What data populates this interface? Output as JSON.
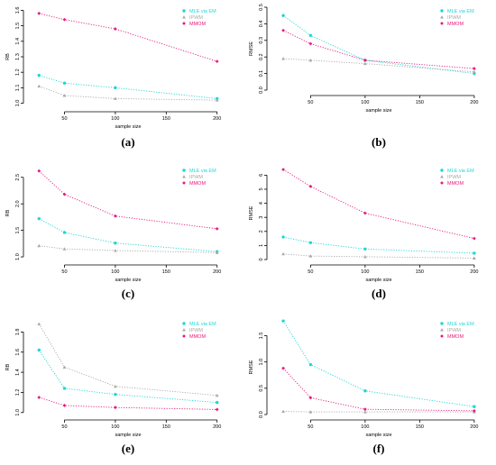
{
  "colors": {
    "mle": "#1fd6d6",
    "ipwm": "#a9a9a9",
    "mmom": "#e8197c"
  },
  "chart_data": [
    {
      "type": "line",
      "caption": "(a)",
      "title": "",
      "xlabel": "sample size",
      "ylabel": "RB",
      "categories": [
        25,
        50,
        100,
        200
      ],
      "xticks": [
        50,
        100,
        150,
        200
      ],
      "ylim": [
        0.98,
        1.62
      ],
      "yticks": [
        "1.0",
        "1.1",
        "1.2",
        "1.3",
        "1.4",
        "1.5",
        "1.6"
      ],
      "legend": "top-right",
      "series": [
        {
          "name": "MLE via EM",
          "marker": "circle",
          "values": [
            1.18,
            1.13,
            1.1,
            1.03
          ]
        },
        {
          "name": "IPWM",
          "marker": "triangle",
          "values": [
            1.11,
            1.05,
            1.03,
            1.02
          ]
        },
        {
          "name": "MMOM",
          "marker": "diamond",
          "values": [
            1.58,
            1.54,
            1.48,
            1.27
          ]
        }
      ]
    },
    {
      "type": "line",
      "caption": "(b)",
      "title": "",
      "xlabel": "sample size",
      "ylabel": "RMSE",
      "categories": [
        25,
        50,
        100,
        200
      ],
      "xticks": [
        50,
        100,
        150,
        200
      ],
      "ylim": [
        0.0,
        0.5
      ],
      "yticks": [
        "0.0",
        "0.1",
        "0.2",
        "0.3",
        "0.4",
        "0.5"
      ],
      "legend": "top-right",
      "series": [
        {
          "name": "MLE via EM",
          "marker": "circle",
          "values": [
            0.45,
            0.33,
            0.18,
            0.1
          ]
        },
        {
          "name": "IPWM",
          "marker": "triangle",
          "values": [
            0.19,
            0.18,
            0.16,
            0.11
          ]
        },
        {
          "name": "MMOM",
          "marker": "diamond",
          "values": [
            0.36,
            0.28,
            0.18,
            0.13
          ]
        }
      ]
    },
    {
      "type": "line",
      "caption": "(c)",
      "title": "",
      "xlabel": "sample size",
      "ylabel": "RB",
      "categories": [
        25,
        50,
        100,
        200
      ],
      "xticks": [
        50,
        100,
        150,
        200
      ],
      "ylim": [
        0.95,
        2.7
      ],
      "yticks": [
        "1.0",
        "1.5",
        "2.0",
        "2.5"
      ],
      "legend": "top-right",
      "series": [
        {
          "name": "MLE via EM",
          "marker": "circle",
          "values": [
            1.72,
            1.46,
            1.26,
            1.1
          ]
        },
        {
          "name": "IPWM",
          "marker": "triangle",
          "values": [
            1.21,
            1.15,
            1.12,
            1.08
          ]
        },
        {
          "name": "MMOM",
          "marker": "diamond",
          "values": [
            2.62,
            2.18,
            1.77,
            1.53
          ]
        }
      ]
    },
    {
      "type": "line",
      "caption": "(d)",
      "title": "",
      "xlabel": "sample size",
      "ylabel": "RMSE",
      "categories": [
        25,
        50,
        100,
        200
      ],
      "xticks": [
        50,
        100,
        150,
        200
      ],
      "ylim": [
        0,
        6.6
      ],
      "yticks": [
        "0",
        "1",
        "2",
        "3",
        "4",
        "5",
        "6"
      ],
      "legend": "top-right",
      "series": [
        {
          "name": "MLE via EM",
          "marker": "circle",
          "values": [
            1.6,
            1.2,
            0.75,
            0.45
          ]
        },
        {
          "name": "IPWM",
          "marker": "triangle",
          "values": [
            0.4,
            0.25,
            0.2,
            0.1
          ]
        },
        {
          "name": "MMOM",
          "marker": "diamond",
          "values": [
            6.4,
            5.2,
            3.3,
            1.5
          ]
        }
      ]
    },
    {
      "type": "line",
      "caption": "(e)",
      "title": "",
      "xlabel": "sample size",
      "ylabel": "RB",
      "categories": [
        25,
        50,
        100,
        200
      ],
      "xticks": [
        50,
        100,
        150,
        200
      ],
      "ylim": [
        0.98,
        1.92
      ],
      "yticks": [
        "1.0",
        "1.2",
        "1.4",
        "1.6",
        "1.8"
      ],
      "legend": "top-right",
      "series": [
        {
          "name": "MLE via EM",
          "marker": "circle",
          "values": [
            1.62,
            1.24,
            1.18,
            1.1
          ]
        },
        {
          "name": "IPWM",
          "marker": "triangle",
          "values": [
            1.88,
            1.45,
            1.26,
            1.17
          ]
        },
        {
          "name": "MMOM",
          "marker": "diamond",
          "values": [
            1.15,
            1.07,
            1.05,
            1.03
          ]
        }
      ]
    },
    {
      "type": "line",
      "caption": "(f)",
      "title": "",
      "xlabel": "sample size",
      "ylabel": "RMSE",
      "categories": [
        25,
        50,
        100,
        200
      ],
      "xticks": [
        50,
        100,
        150,
        200
      ],
      "ylim": [
        0.0,
        1.8
      ],
      "yticks": [
        "0.0",
        "0.5",
        "1.0",
        "1.5"
      ],
      "legend": "top-right",
      "series": [
        {
          "name": "MLE via EM",
          "marker": "circle",
          "values": [
            1.78,
            0.95,
            0.45,
            0.15
          ]
        },
        {
          "name": "IPWM",
          "marker": "triangle",
          "values": [
            0.06,
            0.05,
            0.05,
            0.05
          ]
        },
        {
          "name": "MMOM",
          "marker": "diamond",
          "values": [
            0.88,
            0.32,
            0.1,
            0.07
          ]
        }
      ]
    }
  ]
}
